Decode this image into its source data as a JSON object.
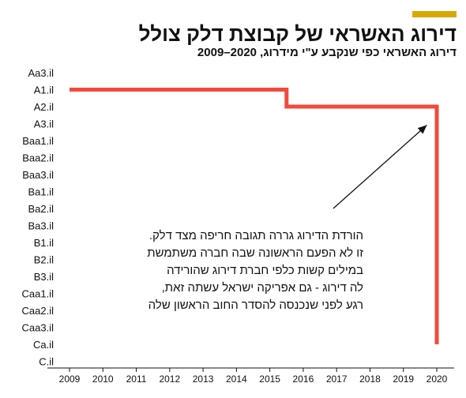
{
  "header": {
    "title": "דירוג האשראי של קבוצת דלק צולל",
    "subtitle": "דירוג האשראי כפי שנקבע ע\"י מידרוג, 2020–2009",
    "accent_color": "#d9a800"
  },
  "annotation": {
    "lines": [
      "הורדת הדירוג גררה תגובה חריפה מצד דלק.",
      "זו לא הפעם הראשונה שבה חברה משתמשת",
      "במילים קשות כלפי חברת דירוג שהורידה",
      "לה דירוג - גם אפריקה ישראל עשתה זאת,",
      "רגע לפני שנכנסה להסדר החוב הראשון שלה"
    ],
    "arrow_from": [
      2016.9,
      "Ba2.il"
    ],
    "arrow_to": [
      2019.7,
      "A3.il"
    ]
  },
  "chart_data": {
    "type": "line",
    "title": "דירוג האשראי של קבוצת דלק צולל",
    "subtitle": "דירוג האשראי כפי שנקבע ע\"י מידרוג, 2020–2009",
    "xlabel": "",
    "ylabel": "",
    "x_ticks": [
      2009,
      2010,
      2011,
      2012,
      2013,
      2014,
      2015,
      2016,
      2017,
      2018,
      2019,
      2020
    ],
    "y_categories": [
      "Aa3.il",
      "A1.il",
      "A2.il",
      "A3.il",
      "Baa1.il",
      "Baa2.il",
      "Baa3.il",
      "Ba1.il",
      "Ba2.il",
      "Ba3.il",
      "B1.il",
      "B2.il",
      "B3.il",
      "Caa1.il",
      "Caa2.il",
      "Caa3.il",
      "Ca.il",
      "C.il"
    ],
    "series": [
      {
        "color": "#f24a3b",
        "step": true,
        "points": [
          {
            "x": 2009,
            "y": "A1.il"
          },
          {
            "x": 2015.5,
            "y": "A1.il"
          },
          {
            "x": 2015.5,
            "y": "A2.il"
          },
          {
            "x": 2020,
            "y": "A2.il"
          },
          {
            "x": 2020,
            "y": "Ca.il"
          }
        ]
      }
    ],
    "xlim": [
      2009,
      2020
    ],
    "grid": false,
    "legend": "none"
  }
}
